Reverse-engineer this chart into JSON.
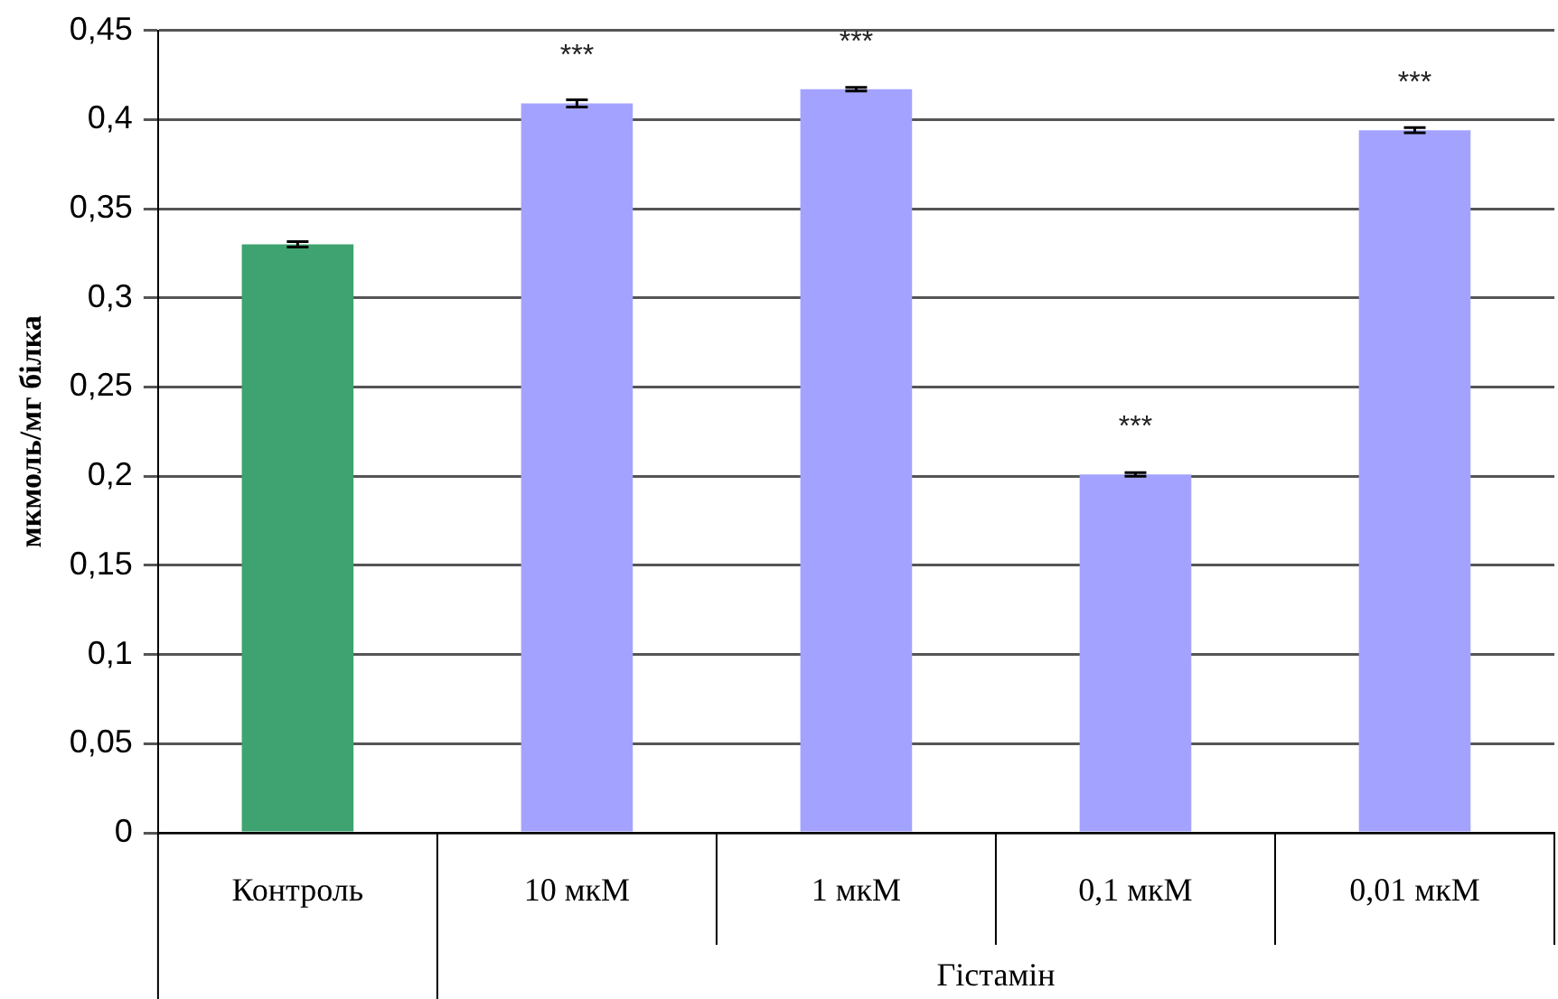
{
  "chart_data": {
    "type": "bar",
    "ylabel": "мкмоль/мг білка",
    "xlabel": "Гістамін",
    "categories": [
      "Контроль",
      "10 мкМ",
      "1 мкМ",
      "0,1 мкМ",
      "0,01 мкМ"
    ],
    "values": [
      0.33,
      0.409,
      0.417,
      0.201,
      0.394
    ],
    "colors": [
      "#3ea370",
      "#a3a3ff",
      "#a3a3ff",
      "#a3a3ff",
      "#a3a3ff"
    ],
    "errors": [
      0.0015,
      0.002,
      0.001,
      0.001,
      0.0015
    ],
    "ylim": [
      0,
      0.45
    ],
    "yticks": [
      0,
      {
        "value": 0.05,
        "label": "0,05"
      },
      {
        "value": 0.1,
        "label": "0,1"
      },
      {
        "value": 0.15,
        "label": "0,15"
      },
      {
        "value": 0.2,
        "label": "0,2"
      },
      {
        "value": 0.25,
        "label": "0,25"
      },
      {
        "value": 0.3,
        "label": "0,3"
      },
      {
        "value": 0.35,
        "label": "0,35"
      },
      {
        "value": 0.4,
        "label": "0,4"
      },
      {
        "value": 0.45,
        "label": "0,45"
      }
    ],
    "grid": "y",
    "annotations": [
      {
        "text": "***",
        "x": "10 мкМ",
        "y": 0.409
      },
      {
        "text": "***",
        "x": "1 мкМ",
        "y": 0.417
      },
      {
        "text": "***",
        "x": "0,1 мкМ",
        "y": 0.201
      },
      {
        "text": "***",
        "x": "0,01 мкМ",
        "y": 0.394
      }
    ]
  }
}
